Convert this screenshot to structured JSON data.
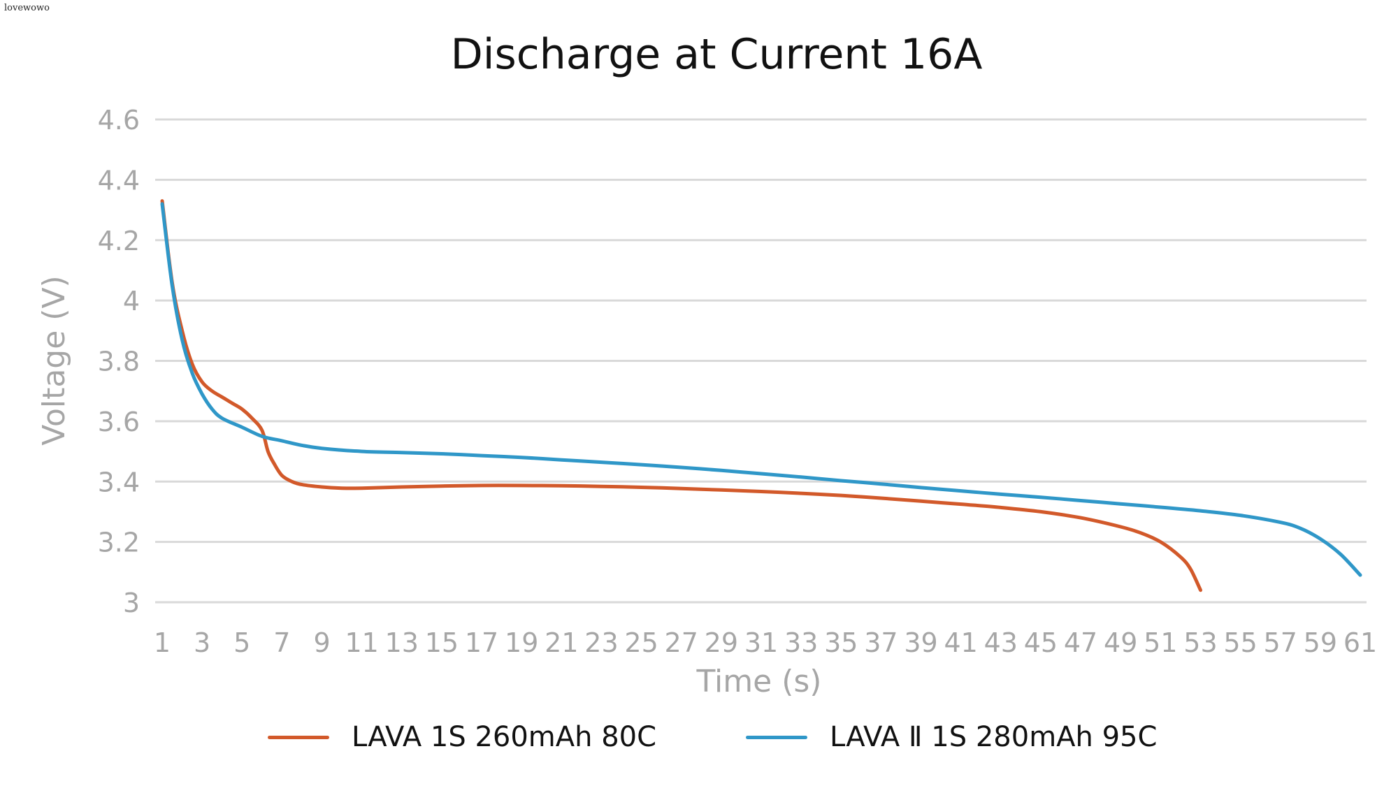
{
  "watermark": "lovewowo",
  "chart_data": {
    "type": "line",
    "title": "Discharge at Current 16A",
    "xlabel": "Time (s)",
    "ylabel": "Voltage (V)",
    "ylim": [
      3,
      4.6
    ],
    "yticks": [
      "3",
      "3.2",
      "3.4",
      "3.6",
      "3.8",
      "4",
      "4.2",
      "4.4",
      "4.6"
    ],
    "xticks": [
      "1",
      "3",
      "5",
      "7",
      "9",
      "11",
      "13",
      "15",
      "17",
      "19",
      "21",
      "23",
      "25",
      "27",
      "29",
      "31",
      "33",
      "35",
      "37",
      "39",
      "41",
      "43",
      "45",
      "47",
      "49",
      "51",
      "53",
      "55",
      "57",
      "59",
      "61"
    ],
    "grid": true,
    "legend_position": "bottom",
    "series": [
      {
        "name": "LAVA 1S 260mAh 80C",
        "color": "#d2592a",
        "x": [
          1,
          1.5,
          2,
          2.5,
          3,
          3.5,
          4,
          4.5,
          5,
          5.5,
          6,
          6.3,
          6.6,
          7,
          7.5,
          8,
          9,
          10,
          11,
          13,
          15,
          17,
          19,
          21,
          23,
          25,
          27,
          29,
          31,
          33,
          35,
          37,
          39,
          41,
          43,
          45,
          47,
          49,
          50,
          51,
          52,
          52.5,
          53
        ],
        "values": [
          4.33,
          4.06,
          3.9,
          3.79,
          3.73,
          3.7,
          3.68,
          3.66,
          3.64,
          3.61,
          3.57,
          3.5,
          3.46,
          3.42,
          3.4,
          3.39,
          3.382,
          3.378,
          3.378,
          3.382,
          3.385,
          3.387,
          3.387,
          3.386,
          3.384,
          3.381,
          3.377,
          3.372,
          3.367,
          3.361,
          3.354,
          3.345,
          3.335,
          3.325,
          3.314,
          3.3,
          3.28,
          3.25,
          3.23,
          3.2,
          3.15,
          3.11,
          3.04
        ]
      },
      {
        "name": "LAVA Ⅱ 1S 280mAh 95C",
        "color": "#2f97c8",
        "x": [
          1,
          1.5,
          2,
          2.5,
          3,
          3.5,
          4,
          5,
          6,
          7,
          8,
          9,
          11,
          13,
          15,
          17,
          19,
          21,
          23,
          25,
          27,
          29,
          31,
          33,
          35,
          37,
          39,
          41,
          43,
          45,
          47,
          49,
          51,
          53,
          55,
          57,
          58,
          59,
          60,
          61
        ],
        "values": [
          4.32,
          4.05,
          3.87,
          3.76,
          3.69,
          3.64,
          3.61,
          3.58,
          3.55,
          3.535,
          3.52,
          3.51,
          3.5,
          3.496,
          3.492,
          3.486,
          3.48,
          3.472,
          3.464,
          3.456,
          3.447,
          3.437,
          3.426,
          3.415,
          3.403,
          3.392,
          3.38,
          3.369,
          3.358,
          3.348,
          3.337,
          3.326,
          3.315,
          3.303,
          3.288,
          3.265,
          3.245,
          3.21,
          3.16,
          3.09
        ]
      }
    ]
  }
}
